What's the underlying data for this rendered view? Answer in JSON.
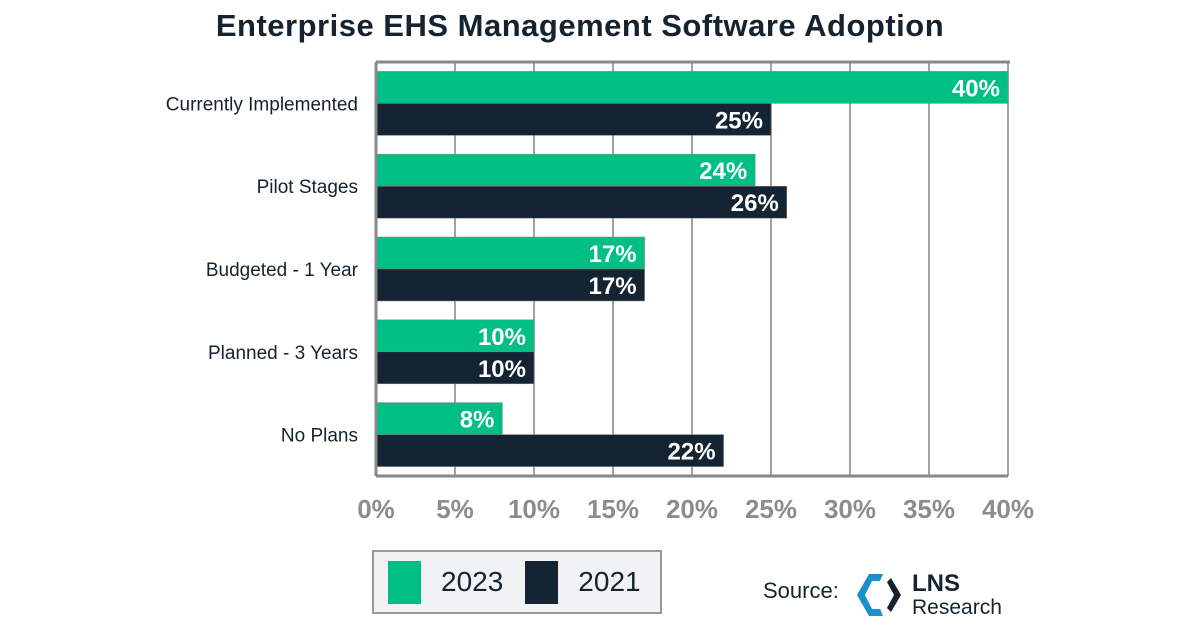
{
  "chart_data": {
    "type": "bar",
    "orientation": "horizontal",
    "title": "Enterprise EHS Management Software Adoption",
    "categories": [
      "Currently Implemented",
      "Pilot Stages",
      "Budgeted - 1 Year",
      "Planned - 3 Years",
      "No Plans"
    ],
    "series": [
      {
        "name": "2023",
        "color": "#00bf82",
        "values": [
          40,
          24,
          17,
          10,
          8
        ]
      },
      {
        "name": "2021",
        "color": "#142433",
        "values": [
          25,
          26,
          17,
          10,
          22
        ]
      }
    ],
    "xlim": [
      0,
      40
    ],
    "xticks": [
      "0%",
      "5%",
      "10%",
      "15%",
      "20%",
      "25%",
      "30%",
      "35%",
      "40%"
    ],
    "grid": true,
    "legend": "bottom"
  },
  "source": {
    "label": "Source:",
    "logo_line1": "LNS",
    "logo_line2": "Research"
  }
}
